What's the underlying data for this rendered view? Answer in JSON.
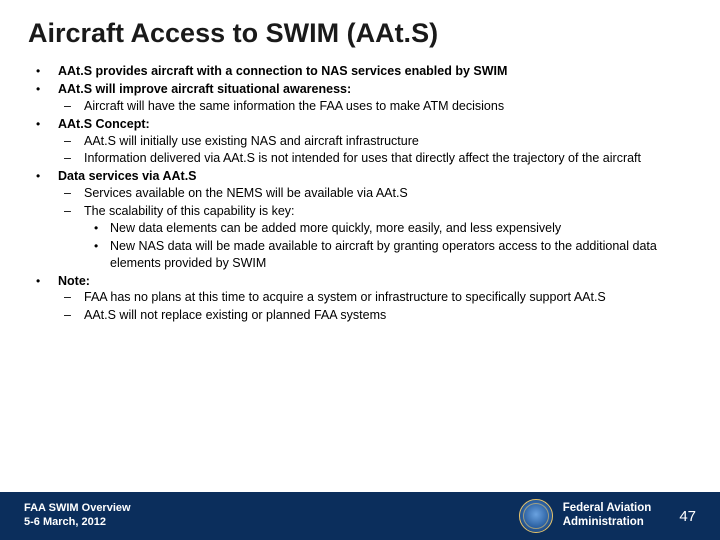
{
  "title": "Aircraft Access to SWIM (AAt.S)",
  "bullets": {
    "b1": "AAt.S provides aircraft with a connection to NAS services enabled by SWIM",
    "b2": "AAt.S will improve aircraft situational awareness:",
    "b2_1": "Aircraft will have the same information the FAA uses to make ATM decisions",
    "b3": "AAt.S Concept:",
    "b3_1": "AAt.S will initially use existing NAS and aircraft infrastructure",
    "b3_2": "Information delivered via AAt.S is not intended for uses that directly affect the trajectory of the aircraft",
    "b4": "Data services via AAt.S",
    "b4_1": "Services available on the NEMS will be available via AAt.S",
    "b4_2": "The scalability of this capability is key:",
    "b4_2_1": "New data elements can be added more quickly, more easily, and less expensively",
    "b4_2_2": "New NAS data will be made available to aircraft by granting operators access to the additional data elements provided by SWIM",
    "b5": "Note:",
    "b5_1": "FAA has no plans at this time to acquire a system or infrastructure to specifically support AAt.S",
    "b5_2": "AAt.S will not replace existing or planned FAA systems"
  },
  "footer": {
    "left_line1": "FAA SWIM Overview",
    "left_line2": "5-6 March, 2012",
    "org_line1": "Federal Aviation",
    "org_line2": "Administration",
    "page": "47"
  },
  "colors": {
    "footer_bg": "#0b2e5c",
    "text": "#000000",
    "title": "#1a1a1a"
  }
}
